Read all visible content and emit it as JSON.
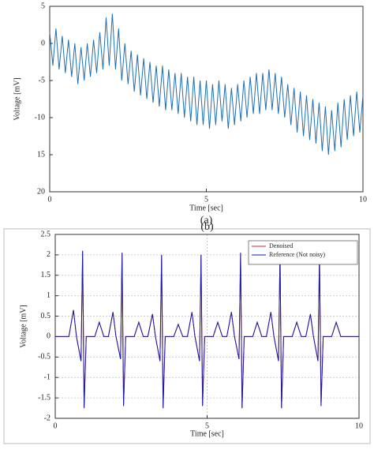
{
  "chart_data": [
    {
      "type": "line",
      "caption": "(a)",
      "xlabel": "Time [sec]",
      "ylabel": "Voltage [mV]",
      "x": [
        0,
        0.1,
        0.2,
        0.3,
        0.4,
        0.5,
        0.6,
        0.7,
        0.8,
        0.9,
        1,
        1.1,
        1.2,
        1.3,
        1.4,
        1.5,
        1.6,
        1.7,
        1.8,
        1.9,
        2,
        2.1,
        2.2,
        2.3,
        2.4,
        2.5,
        2.6,
        2.7,
        2.8,
        2.9,
        3,
        3.1,
        3.2,
        3.3,
        3.4,
        3.5,
        3.6,
        3.7,
        3.8,
        3.9,
        4,
        4.1,
        4.2,
        4.3,
        4.4,
        4.5,
        4.6,
        4.7,
        4.8,
        4.9,
        5,
        5.1,
        5.2,
        5.3,
        5.4,
        5.5,
        5.6,
        5.7,
        5.8,
        5.9,
        6,
        6.1,
        6.2,
        6.3,
        6.4,
        6.5,
        6.6,
        6.7,
        6.8,
        6.9,
        7,
        7.1,
        7.2,
        7.3,
        7.4,
        7.5,
        7.6,
        7.7,
        7.8,
        7.9,
        8,
        8.1,
        8.2,
        8.3,
        8.4,
        8.5,
        8.6,
        8.7,
        8.8,
        8.9,
        9,
        9.1,
        9.2,
        9.3,
        9.4,
        9.5,
        9.6,
        9.7,
        9.8,
        9.9,
        10
      ],
      "series": [
        {
          "color": "#1f6fb4",
          "values": [
            1.5,
            -3,
            2,
            -3.5,
            1,
            -4,
            0.5,
            -4.5,
            0,
            -5.5,
            -0.5,
            -5,
            0,
            -4.5,
            0.5,
            -4,
            1.5,
            -3.5,
            3.5,
            -3,
            4,
            -3.5,
            2,
            -5,
            0,
            -5.5,
            -1,
            -6.5,
            -1.5,
            -7,
            -2,
            -7.5,
            -2.5,
            -8,
            -3,
            -8.5,
            -3,
            -9,
            -3.5,
            -9,
            -4,
            -9.5,
            -4,
            -10,
            -4.5,
            -10.5,
            -4.5,
            -11,
            -5,
            -11,
            -5,
            -11.5,
            -5.5,
            -11,
            -5,
            -10.5,
            -5.5,
            -11.5,
            -6,
            -11,
            -5.5,
            -10.5,
            -5,
            -10,
            -4.5,
            -9.5,
            -4,
            -9.5,
            -4,
            -9,
            -3.5,
            -9,
            -4,
            -9.5,
            -4.5,
            -10,
            -5.5,
            -11,
            -6,
            -12,
            -6.5,
            -12.5,
            -7,
            -13,
            -7.5,
            -13.5,
            -8,
            -14.5,
            -8.5,
            -15,
            -9,
            -14.5,
            -8,
            -14,
            -7.5,
            -13,
            -7,
            -12.5,
            -6.5,
            -12,
            -7
          ]
        }
      ],
      "xlim": [
        0,
        10
      ],
      "xticks": [
        0,
        5,
        10
      ],
      "ylim": [
        -20,
        5
      ],
      "yticks": [
        5,
        0,
        -5,
        -10,
        {
          "value": -15,
          "label": "15"
        },
        {
          "value": -20,
          "label": "20"
        }
      ],
      "grid": false
    },
    {
      "type": "line",
      "caption": "(b)",
      "xlabel": "Time [sec]",
      "ylabel": "Voltage [mV]",
      "x": [
        0,
        0.45,
        0.6,
        0.7,
        0.85,
        0.9,
        0.95,
        1.02,
        1.3,
        1.45,
        1.6,
        1.75,
        1.9,
        2.0,
        2.15,
        2.2,
        2.25,
        2.32,
        2.6,
        2.75,
        2.9,
        3.05,
        3.2,
        3.3,
        3.45,
        3.5,
        3.55,
        3.62,
        3.9,
        4.05,
        4.2,
        4.35,
        4.5,
        4.6,
        4.75,
        4.8,
        4.85,
        4.92,
        5.2,
        5.35,
        5.5,
        5.65,
        5.8,
        5.9,
        6.05,
        6.1,
        6.15,
        6.22,
        6.5,
        6.65,
        6.8,
        6.95,
        7.1,
        7.2,
        7.35,
        7.4,
        7.45,
        7.52,
        7.8,
        7.95,
        8.1,
        8.25,
        8.4,
        8.5,
        8.65,
        8.7,
        8.75,
        8.82,
        9.1,
        9.25,
        9.4,
        10
      ],
      "series": [
        {
          "name": "Denoised",
          "color": "#d62728",
          "values": [
            0,
            0,
            0.65,
            0,
            -0.6,
            2.1,
            -1.75,
            0,
            0,
            0.35,
            0,
            0,
            0.6,
            0,
            -0.55,
            2.05,
            -1.7,
            0,
            0,
            0.35,
            0,
            0,
            0.55,
            0,
            -0.6,
            2,
            -1.75,
            0,
            0,
            0.3,
            0,
            0,
            0.6,
            0,
            -0.6,
            2,
            -1.7,
            0,
            0,
            0.35,
            0,
            0,
            0.6,
            0,
            -0.55,
            2.05,
            -1.75,
            0,
            0,
            0.35,
            0,
            0,
            0.6,
            0,
            -0.6,
            2.05,
            -1.75,
            0,
            0,
            0.35,
            0,
            0,
            0.55,
            0,
            -0.6,
            2,
            -1.7,
            0,
            0,
            0.35,
            0,
            0
          ]
        },
        {
          "name": "Reference (Not noisy)",
          "color": "#1a1aa6",
          "values": [
            0,
            0,
            0.65,
            0,
            -0.6,
            2.1,
            -1.75,
            0,
            0,
            0.35,
            0,
            0,
            0.6,
            0,
            -0.55,
            2.05,
            -1.7,
            0,
            0,
            0.35,
            0,
            0,
            0.55,
            0,
            -0.6,
            2,
            -1.75,
            0,
            0,
            0.3,
            0,
            0,
            0.6,
            0,
            -0.6,
            2,
            -1.7,
            0,
            0,
            0.35,
            0,
            0,
            0.6,
            0,
            -0.55,
            2.05,
            -1.75,
            0,
            0,
            0.35,
            0,
            0,
            0.6,
            0,
            -0.6,
            2.05,
            -1.75,
            0,
            0,
            0.35,
            0,
            0,
            0.55,
            0,
            -0.6,
            2,
            -1.7,
            0,
            0,
            0.35,
            0,
            0
          ]
        }
      ],
      "xlim": [
        0,
        10
      ],
      "xticks": [
        0,
        5,
        10
      ],
      "ylim": [
        -2,
        2.5
      ],
      "yticks": [
        2.5,
        2,
        1.5,
        1,
        0.5,
        0,
        -0.5,
        -1,
        -1.5,
        -2
      ],
      "grid": true,
      "legend": "upper right"
    }
  ]
}
